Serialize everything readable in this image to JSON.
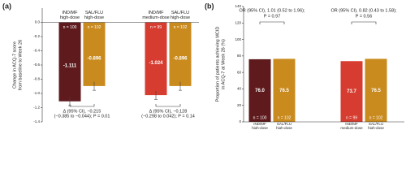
{
  "chart_data": [
    {
      "type": "bar",
      "panel_label": "(a)",
      "y_label": [
        "Change in ACQ-7 score",
        "from baseline to Week 26"
      ],
      "categories": [
        [
          "IND/MF",
          "high-dose"
        ],
        [
          "SAL/FLU",
          "high-dose"
        ],
        [
          "IND/MF",
          "medium-dose"
        ],
        [
          "SAL/FLU",
          "high-dose"
        ]
      ],
      "values": [
        -1.111,
        -0.896,
        -1.024,
        -0.896
      ],
      "errors": [
        0.06,
        0.06,
        0.06,
        0.06
      ],
      "n_labels": [
        "n = 100",
        "n = 102",
        "n = 99",
        "n = 102"
      ],
      "colors": [
        "#5e1a1d",
        "#c98a1e",
        "#d63c2f",
        "#c98a1e"
      ],
      "ylim": [
        -1.4,
        0.2
      ],
      "yticks": [
        {
          "value": 0,
          "label": "0.0"
        },
        -0.2,
        -0.4,
        -0.6,
        -0.8,
        {
          "value": -1,
          "label": "-1.0"
        },
        -1.2,
        -1.4
      ],
      "annotations": [
        [
          "Δ (95% CI), −0.215",
          "(−0.385 to −0.044); P = 0.01"
        ],
        [
          "Δ (95% CI), −0.128",
          "(−0.298 to 0.042); P = 0.14"
        ]
      ]
    },
    {
      "type": "bar",
      "panel_label": "(b)",
      "y_label": [
        "Proportion of patients achieving MCID",
        "in ACQ-7 at Week 26 (%)"
      ],
      "categories": [
        [
          "IND/MF",
          "high-dose"
        ],
        [
          "SAL/FLU",
          "high-dose"
        ],
        [
          "IND/MF",
          "medium-dose"
        ],
        [
          "SAL/FLU",
          "high-dose"
        ]
      ],
      "values": [
        76,
        76.5,
        73.7,
        76.5
      ],
      "value_labels": [
        "76.0",
        "76.5",
        "73.7",
        "76.5"
      ],
      "n_labels": [
        "n = 100",
        "n = 102",
        "n = 99",
        "n = 102"
      ],
      "colors": [
        "#5e1a1d",
        "#c98a1e",
        "#d63c2f",
        "#c98a1e"
      ],
      "ylim": [
        0,
        140
      ],
      "yticks": [
        0,
        20,
        40,
        60,
        80,
        100,
        120,
        140
      ],
      "annotations": [
        [
          "OR (95% CI), 1.01 (0.52 to 1.96);",
          "P = 0.97"
        ],
        [
          "OR (95% CI), 0.82 (0.43 to 1.58);",
          "P = 0.56"
        ]
      ]
    }
  ]
}
